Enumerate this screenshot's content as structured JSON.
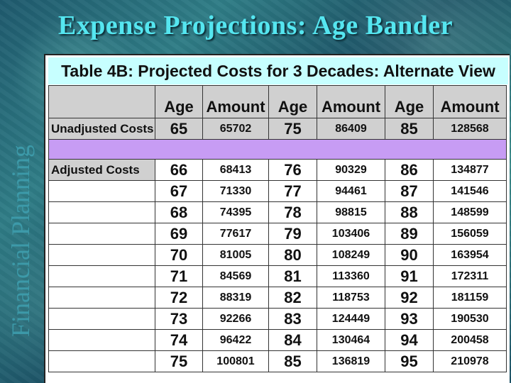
{
  "slide": {
    "title": "Expense Projections: Age Bander",
    "side_text": "Financial Planning"
  },
  "table": {
    "caption": "Table 4B: Projected Costs for 3 Decades: Alternate View",
    "headers": [
      "Age",
      "Amount",
      "Age",
      "Amount",
      "Age",
      "Amount"
    ],
    "unadjusted": {
      "label": "Unadjusted Costs",
      "values": [
        "65",
        "65702",
        "75",
        "86409",
        "85",
        "128568"
      ]
    },
    "adjusted_label": "Adjusted Costs",
    "adjusted_rows": [
      [
        "66",
        "68413",
        "76",
        "90329",
        "86",
        "134877"
      ],
      [
        "67",
        "71330",
        "77",
        "94461",
        "87",
        "141546"
      ],
      [
        "68",
        "74395",
        "78",
        "98815",
        "88",
        "148599"
      ],
      [
        "69",
        "77617",
        "79",
        "103406",
        "89",
        "156059"
      ],
      [
        "70",
        "81005",
        "80",
        "108249",
        "90",
        "163954"
      ],
      [
        "71",
        "84569",
        "81",
        "113360",
        "91",
        "172311"
      ],
      [
        "72",
        "88319",
        "82",
        "118753",
        "92",
        "181159"
      ],
      [
        "73",
        "92266",
        "83",
        "124449",
        "93",
        "190530"
      ],
      [
        "74",
        "96422",
        "84",
        "130464",
        "94",
        "200458"
      ],
      [
        "75",
        "100801",
        "85",
        "136819",
        "95",
        "210978"
      ]
    ]
  },
  "colors": {
    "title": "#55e6f0",
    "caption_bg": "#c7ffff",
    "separator": "#c79cf4",
    "label_bg": "#d0d0d0"
  }
}
